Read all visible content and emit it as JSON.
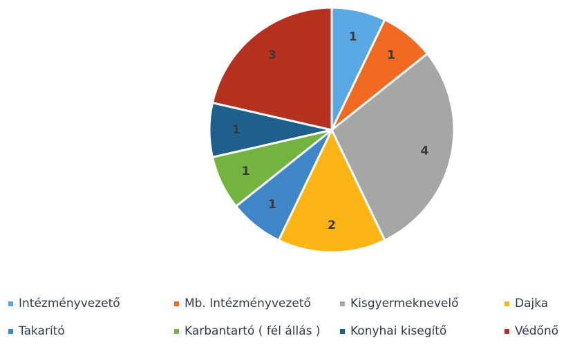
{
  "chart_data": {
    "type": "pie",
    "title": "",
    "start_angle_deg": 0,
    "direction": "clockwise",
    "legend_position": "bottom",
    "slices": [
      {
        "label": "Intézményvezető",
        "value": 1,
        "data_label": "1",
        "color": "#5aa8e3"
      },
      {
        "label": "Mb. Intézményvezető",
        "value": 1,
        "data_label": "1",
        "color": "#f26a21"
      },
      {
        "label": "Kisgyermeknevelő",
        "value": 4,
        "data_label": "4",
        "color": "#a4a7a3"
      },
      {
        "label": "Dajka",
        "value": 2,
        "data_label": "2",
        "color": "#fcb514"
      },
      {
        "label": "Takarító",
        "value": 1,
        "data_label": "1",
        "color": "#3f86c8"
      },
      {
        "label": "Karbantartó ( fél állás )",
        "value": 1,
        "data_label": "1",
        "color": "#71b43f"
      },
      {
        "label": "Konyhai kisegítő",
        "value": 1,
        "data_label": "1",
        "color": "#1f5f8b"
      },
      {
        "label": "Védőnő",
        "value": 3,
        "data_label": "3",
        "color": "#b5311f"
      }
    ]
  }
}
